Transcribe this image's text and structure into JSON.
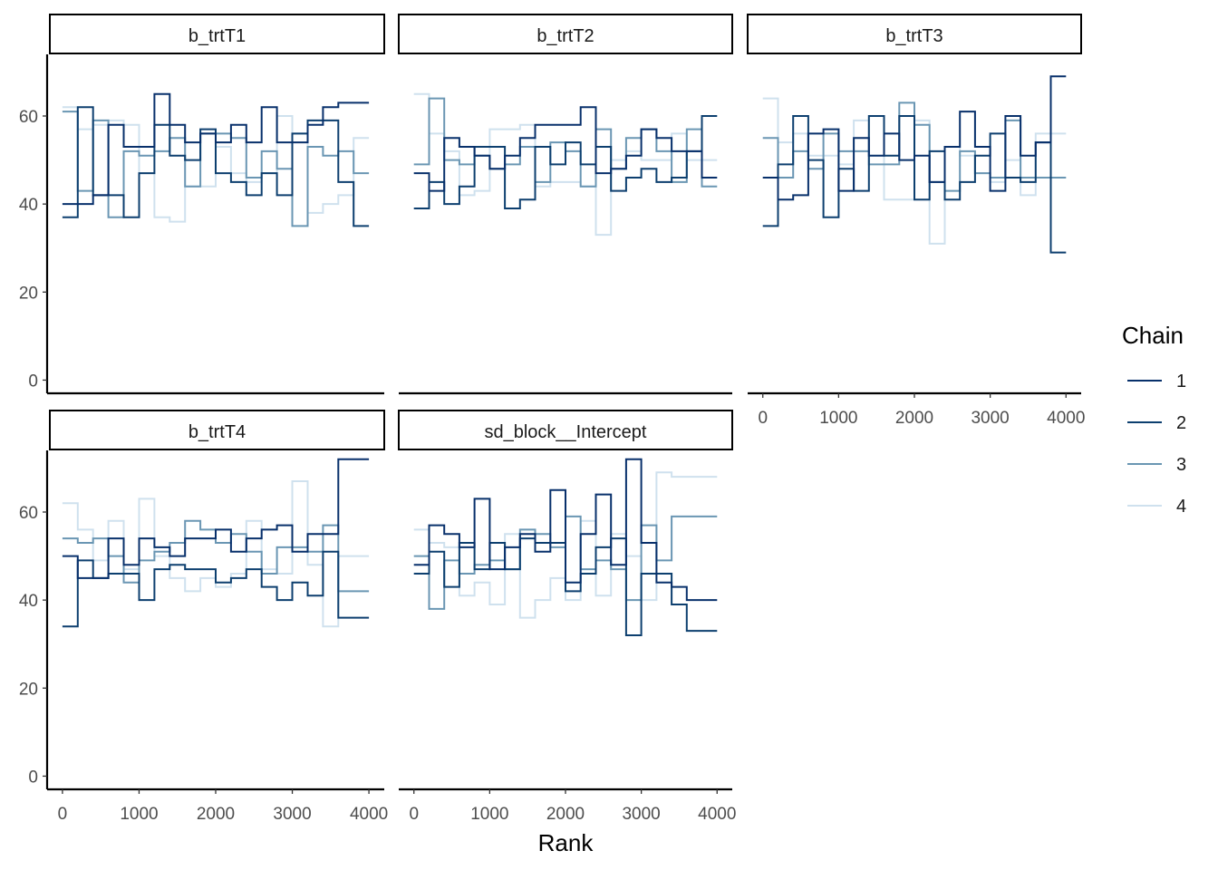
{
  "chart_data": {
    "type": "line",
    "subtype": "rank histogram (step lines), faceted",
    "xlabel": "Rank",
    "ylabel": "",
    "x_ticks": [
      0,
      1000,
      2000,
      3000,
      4000
    ],
    "y_ticks": [
      0,
      20,
      40,
      60
    ],
    "xlim": [
      -200,
      4200
    ],
    "ylim": [
      -3,
      74
    ],
    "grid": false,
    "legend": {
      "title": "Chain",
      "placement": "right",
      "entries": [
        {
          "label": "1",
          "color": "#08306b"
        },
        {
          "label": "2",
          "color": "#0d3f6f"
        },
        {
          "label": "3",
          "color": "#6a96b3"
        },
        {
          "label": "4",
          "color": "#cfe1ee"
        }
      ]
    },
    "bin_edges": [
      0,
      200,
      400,
      600,
      800,
      1000,
      1200,
      1400,
      1600,
      1800,
      2000,
      2200,
      2400,
      2600,
      2800,
      3000,
      3200,
      3400,
      3600,
      3800,
      4000
    ],
    "panels": [
      {
        "title": "b_trtT1",
        "series": [
          {
            "chain": "1",
            "values": [
              40,
              40,
              42,
              58,
              53,
              53,
              65,
              58,
              54,
              56,
              54,
              58,
              54,
              62,
              54,
              54,
              58,
              62,
              63,
              63
            ]
          },
          {
            "chain": "2",
            "values": [
              37,
              62,
              42,
              42,
              37,
              47,
              58,
              51,
              50,
              57,
              47,
              45,
              42,
              47,
              42,
              56,
              59,
              59,
              45,
              35
            ]
          },
          {
            "chain": "3",
            "values": [
              61,
              43,
              59,
              37,
              52,
              51,
              52,
              55,
              44,
              56,
              56,
              55,
              46,
              52,
              48,
              35,
              53,
              51,
              52,
              47
            ]
          },
          {
            "chain": "4",
            "values": [
              62,
              57,
              58,
              59,
              58,
              47,
              37,
              36,
              44,
              44,
              53,
              47,
              45,
              47,
              60,
              56,
              38,
              40,
              42,
              55
            ]
          }
        ]
      },
      {
        "title": "b_trtT2",
        "series": [
          {
            "chain": "1",
            "values": [
              47,
              43,
              55,
              53,
              51,
              48,
              51,
              55,
              58,
              58,
              58,
              62,
              47,
              48,
              51,
              57,
              55,
              52,
              52,
              46
            ]
          },
          {
            "chain": "2",
            "values": [
              39,
              45,
              40,
              44,
              53,
              53,
              39,
              41,
              53,
              49,
              54,
              49,
              53,
              43,
              46,
              48,
              45,
              46,
              52,
              60
            ]
          },
          {
            "chain": "3",
            "values": [
              49,
              64,
              50,
              49,
              51,
              48,
              49,
              53,
              45,
              54,
              52,
              44,
              57,
              48,
              55,
              57,
              52,
              45,
              57,
              44
            ]
          },
          {
            "chain": "4",
            "values": [
              65,
              56,
              52,
              42,
              43,
              57,
              57,
              58,
              44,
              45,
              45,
              44,
              33,
              50,
              52,
              50,
              50,
              56,
              50,
              50
            ]
          }
        ]
      },
      {
        "title": "b_trtT3",
        "series": [
          {
            "chain": "1",
            "values": [
              46,
              41,
              42,
              56,
              57,
              43,
              55,
              51,
              56,
              50,
              51,
              45,
              53,
              61,
              53,
              43,
              60,
              51,
              54,
              69
            ]
          },
          {
            "chain": "2",
            "values": [
              35,
              49,
              60,
              50,
              37,
              48,
              43,
              60,
              51,
              60,
              41,
              52,
              41,
              45,
              51,
              56,
              46,
              45,
              54,
              29
            ]
          },
          {
            "chain": "3",
            "values": [
              55,
              46,
              52,
              48,
              56,
              52,
              52,
              49,
              49,
              63,
              58,
              45,
              43,
              52,
              47,
              46,
              59,
              46,
              46,
              46
            ]
          },
          {
            "chain": "4",
            "values": [
              64,
              54,
              56,
              51,
              51,
              49,
              59,
              51,
              41,
              41,
              59,
              31,
              53,
              51,
              47,
              45,
              50,
              42,
              56,
              56
            ]
          }
        ]
      },
      {
        "title": "b_trtT4",
        "series": [
          {
            "chain": "1",
            "values": [
              50,
              45,
              45,
              54,
              48,
              54,
              52,
              50,
              54,
              54,
              56,
              51,
              54,
              56,
              57,
              51,
              55,
              55,
              72,
              72
            ]
          },
          {
            "chain": "2",
            "values": [
              34,
              49,
              45,
              46,
              46,
              40,
              47,
              48,
              47,
              47,
              44,
              45,
              47,
              43,
              40,
              44,
              41,
              51,
              36,
              36
            ]
          },
          {
            "chain": "3",
            "values": [
              54,
              53,
              54,
              50,
              44,
              49,
              51,
              53,
              58,
              56,
              53,
              55,
              51,
              46,
              52,
              52,
              51,
              57,
              42,
              42
            ]
          },
          {
            "chain": "4",
            "values": [
              62,
              56,
              49,
              58,
              47,
              63,
              50,
              45,
              42,
              45,
              43,
              46,
              58,
              47,
              46,
              67,
              48,
              34,
              50,
              50
            ]
          }
        ]
      },
      {
        "title": "sd_block__Intercept",
        "series": [
          {
            "chain": "1",
            "values": [
              48,
              57,
              55,
              52,
              63,
              47,
              52,
              55,
              51,
              65,
              44,
              55,
              64,
              48,
              72,
              53,
              44,
              43,
              40,
              40
            ]
          },
          {
            "chain": "2",
            "values": [
              46,
              51,
              43,
              53,
              47,
              53,
              47,
              54,
              53,
              53,
              42,
              46,
              52,
              54,
              32,
              46,
              46,
              39,
              33,
              33
            ]
          },
          {
            "chain": "3",
            "values": [
              50,
              38,
              49,
              46,
              48,
              49,
              47,
              56,
              55,
              52,
              59,
              47,
              49,
              47,
              40,
              57,
              49,
              59,
              59,
              59
            ]
          },
          {
            "chain": "4",
            "values": [
              56,
              53,
              52,
              41,
              44,
              39,
              55,
              36,
              40,
              45,
              40,
              58,
              41,
              55,
              50,
              40,
              69,
              68,
              68,
              68
            ]
          }
        ]
      }
    ]
  }
}
